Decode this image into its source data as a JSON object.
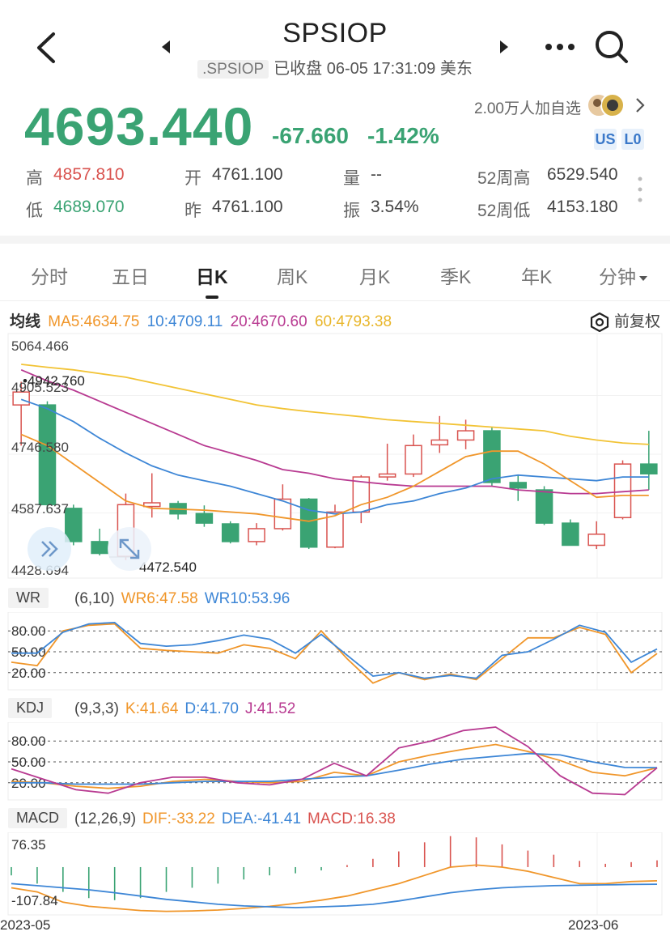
{
  "header": {
    "title": "SPSIOP",
    "code": ".SPSIOP",
    "status": "已收盘 06-05 17:31:09 美东",
    "watchlist": "2.00万人加自选",
    "badges": [
      "US",
      "L0"
    ]
  },
  "quote": {
    "price": "4693.440",
    "change": "-67.660",
    "change_pct": "-1.42%",
    "stats": [
      {
        "label": "高",
        "value": "4857.810"
      },
      {
        "label": "开",
        "value": "4761.100"
      },
      {
        "label": "量",
        "value": "--"
      },
      {
        "label": "52周高",
        "value": "6529.540"
      },
      {
        "label": "低",
        "value": "4689.070"
      },
      {
        "label": "昨",
        "value": "4761.100"
      },
      {
        "label": "振",
        "value": "3.54%"
      },
      {
        "label": "52周低",
        "value": "4153.180"
      }
    ]
  },
  "tabs": [
    "分时",
    "五日",
    "日K",
    "周K",
    "月K",
    "季K",
    "年K",
    "分钟"
  ],
  "active_tab": "日K",
  "ma_legend": {
    "title": "均线",
    "ma5": "MA5:4634.75",
    "ma10": "10:4709.11",
    "ma20": "20:4670.60",
    "ma60": "60:4793.38",
    "adjust": "前复权"
  },
  "colors": {
    "up": "#d9534f",
    "down": "#3aa373",
    "ma5": "#f0962a",
    "ma10": "#3d86d6",
    "ma20": "#b83a91",
    "ma60": "#f2c335"
  },
  "wr": {
    "label": "WR",
    "params": "(6,10)",
    "wr6": "WR6:47.58",
    "wr10": "WR10:53.96"
  },
  "kdj": {
    "label": "KDJ",
    "params": "(9,3,3)",
    "k": "K:41.64",
    "d": "D:41.70",
    "j": "J:41.52"
  },
  "macd": {
    "label": "MACD",
    "params": "(12,26,9)",
    "dif": "DIF:-33.22",
    "dea": "DEA:-41.41",
    "macd": "MACD:16.38"
  },
  "chart_data": [
    {
      "type": "candlestick",
      "y_ticks": [
        "5064.466",
        "4905.523",
        "4746.580",
        "4587.637",
        "4428.694"
      ],
      "ylim": [
        4428.694,
        5064.466
      ],
      "annotations": {
        "max": "4942.760",
        "min": "4472.540"
      },
      "x_labels": [
        "2023-05",
        "2023-06"
      ],
      "candles": [
        {
          "o": 4880,
          "h": 4942.76,
          "l": 4770,
          "c": 4915
        },
        {
          "o": 4880,
          "h": 4890,
          "l": 4590,
          "c": 4610
        },
        {
          "o": 4600,
          "h": 4610,
          "l": 4500,
          "c": 4510
        },
        {
          "o": 4510,
          "h": 4545,
          "l": 4472.54,
          "c": 4478
        },
        {
          "o": 4470,
          "h": 4640,
          "l": 4460,
          "c": 4610
        },
        {
          "o": 4605,
          "h": 4695,
          "l": 4575,
          "c": 4615
        },
        {
          "o": 4613,
          "h": 4620,
          "l": 4570,
          "c": 4585
        },
        {
          "o": 4586,
          "h": 4608,
          "l": 4550,
          "c": 4560
        },
        {
          "o": 4558,
          "h": 4565,
          "l": 4505,
          "c": 4510
        },
        {
          "o": 4510,
          "h": 4560,
          "l": 4500,
          "c": 4545
        },
        {
          "o": 4545,
          "h": 4665,
          "l": 4540,
          "c": 4625
        },
        {
          "o": 4625,
          "h": 4628,
          "l": 4490,
          "c": 4495
        },
        {
          "o": 4495,
          "h": 4610,
          "l": 4492,
          "c": 4590
        },
        {
          "o": 4590,
          "h": 4690,
          "l": 4560,
          "c": 4685
        },
        {
          "o": 4685,
          "h": 4775,
          "l": 4675,
          "c": 4693
        },
        {
          "o": 4693,
          "h": 4800,
          "l": 4685,
          "c": 4770
        },
        {
          "o": 4772,
          "h": 4850,
          "l": 4750,
          "c": 4785
        },
        {
          "o": 4785,
          "h": 4840,
          "l": 4760,
          "c": 4810
        },
        {
          "o": 4810,
          "h": 4820,
          "l": 4660,
          "c": 4670
        },
        {
          "o": 4670,
          "h": 4690,
          "l": 4620,
          "c": 4655
        },
        {
          "o": 4650,
          "h": 4660,
          "l": 4555,
          "c": 4560
        },
        {
          "o": 4560,
          "h": 4570,
          "l": 4500,
          "c": 4500
        },
        {
          "o": 4500,
          "h": 4565,
          "l": 4490,
          "c": 4530
        },
        {
          "o": 4575,
          "h": 4730,
          "l": 4570,
          "c": 4720
        },
        {
          "o": 4720,
          "h": 4810,
          "l": 4650,
          "c": 4693.44
        }
      ],
      "ma5": [
        4800,
        4770,
        4720,
        4670,
        4620,
        4600,
        4598,
        4595,
        4590,
        4585,
        4575,
        4565,
        4580,
        4610,
        4630,
        4660,
        4700,
        4740,
        4755,
        4755,
        4720,
        4675,
        4630,
        4635,
        4635
      ],
      "ma10": [
        4895,
        4870,
        4835,
        4790,
        4750,
        4715,
        4690,
        4675,
        4660,
        4640,
        4620,
        4595,
        4585,
        4590,
        4610,
        4620,
        4640,
        4655,
        4680,
        4690,
        4685,
        4680,
        4675,
        4685,
        4685
      ],
      "ma20": [
        4975,
        4945,
        4920,
        4890,
        4860,
        4830,
        4800,
        4770,
        4750,
        4730,
        4705,
        4695,
        4680,
        4672,
        4665,
        4660,
        4660,
        4660,
        4660,
        4650,
        4645,
        4640,
        4640,
        4645,
        4650
      ],
      "ma60": [
        4990,
        4982,
        4975,
        4965,
        4955,
        4940,
        4925,
        4910,
        4895,
        4880,
        4870,
        4862,
        4855,
        4848,
        4840,
        4835,
        4830,
        4825,
        4820,
        4815,
        4810,
        4795,
        4785,
        4777,
        4773
      ]
    },
    {
      "type": "line",
      "title": "WR",
      "y_ticks": [
        "80.00",
        "50.00",
        "20.00"
      ],
      "ylim": [
        0,
        100
      ],
      "series": [
        {
          "name": "WR6",
          "values": [
            35,
            30,
            80,
            88,
            90,
            55,
            52,
            50,
            48,
            60,
            55,
            40,
            80,
            40,
            5,
            20,
            10,
            18,
            10,
            40,
            70,
            70,
            85,
            75,
            20,
            47.58
          ]
        },
        {
          "name": "WR10",
          "values": [
            48,
            48,
            78,
            90,
            92,
            62,
            58,
            60,
            66,
            74,
            68,
            48,
            75,
            45,
            15,
            20,
            12,
            16,
            12,
            45,
            50,
            68,
            88,
            78,
            35,
            53.96
          ]
        }
      ]
    },
    {
      "type": "line",
      "title": "KDJ",
      "y_ticks": [
        "80.00",
        "50.00",
        "20.00"
      ],
      "ylim": [
        0,
        100
      ],
      "series": [
        {
          "name": "K",
          "values": [
            22,
            20,
            15,
            12,
            15,
            22,
            25,
            22,
            20,
            22,
            35,
            30,
            50,
            60,
            68,
            75,
            65,
            52,
            35,
            30,
            41.64
          ]
        },
        {
          "name": "D",
          "values": [
            20,
            20,
            18,
            18,
            18,
            20,
            22,
            22,
            22,
            25,
            28,
            30,
            38,
            47,
            54,
            58,
            62,
            60,
            50,
            42,
            41.7
          ]
        },
        {
          "name": "J",
          "values": [
            40,
            25,
            10,
            5,
            20,
            28,
            28,
            20,
            17,
            25,
            48,
            30,
            70,
            80,
            95,
            100,
            72,
            30,
            5,
            3,
            41.52
          ]
        }
      ]
    },
    {
      "type": "bar",
      "title": "MACD",
      "y_ticks": [
        "76.35",
        "-107.84"
      ],
      "ylim": [
        -107.84,
        76.35
      ],
      "macd_bars": [
        -20,
        -40,
        -60,
        -75,
        -80,
        -75,
        -60,
        -50,
        -40,
        -30,
        -20,
        -15,
        -8,
        5,
        20,
        38,
        60,
        75,
        72,
        55,
        40,
        30,
        15,
        8,
        12,
        16.38
      ],
      "series": [
        {
          "name": "DIF",
          "values": [
            -50,
            -60,
            -85,
            -95,
            -100,
            -105,
            -107,
            -106,
            -104,
            -100,
            -95,
            -88,
            -80,
            -70,
            -55,
            -40,
            -20,
            0,
            5,
            0,
            -10,
            -25,
            -40,
            -40,
            -35,
            -33.22
          ]
        },
        {
          "name": "DEA",
          "values": [
            -40,
            -45,
            -50,
            -55,
            -62,
            -70,
            -78,
            -84,
            -90,
            -94,
            -96,
            -98,
            -96,
            -94,
            -90,
            -82,
            -72,
            -62,
            -55,
            -50,
            -47,
            -45,
            -44,
            -43,
            -42,
            -41.41
          ]
        }
      ]
    }
  ]
}
